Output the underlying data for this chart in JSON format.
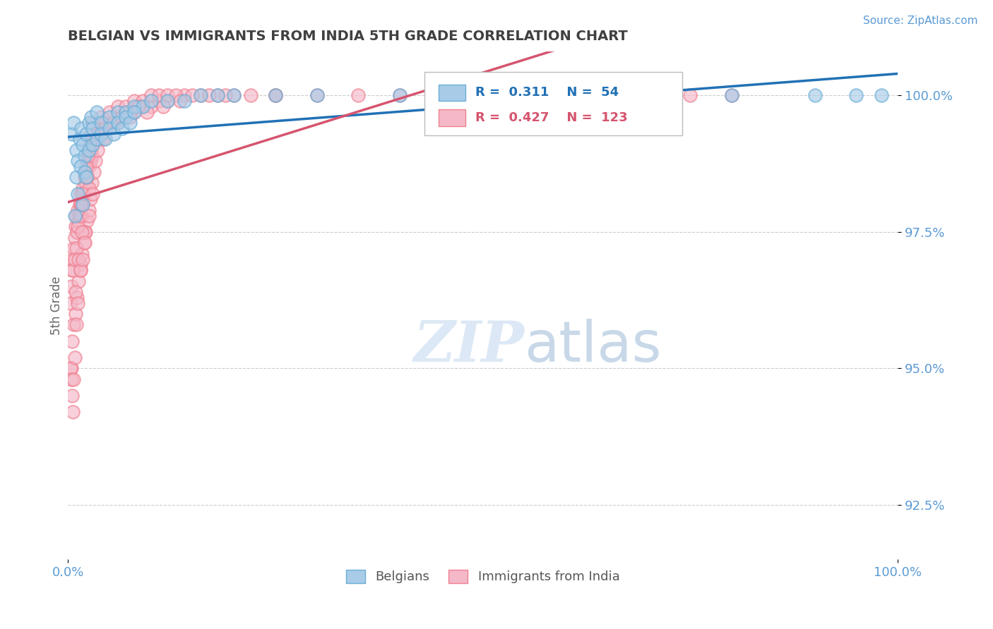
{
  "title": "BELGIAN VS IMMIGRANTS FROM INDIA 5TH GRADE CORRELATION CHART",
  "source_text": "Source: ZipAtlas.com",
  "ylabel": "5th Grade",
  "xmin": 0.0,
  "xmax": 100.0,
  "ymin": 91.5,
  "ymax": 100.8,
  "yticks": [
    92.5,
    95.0,
    97.5,
    100.0
  ],
  "xticks": [
    0.0,
    100.0
  ],
  "belgian_color": "#a8cce8",
  "india_color": "#f4b8c8",
  "belgian_edge_color": "#6aaed6",
  "india_edge_color": "#f08090",
  "belgian_line_color": "#2171b5",
  "india_line_color": "#d6546e",
  "R_belgian": 0.311,
  "N_belgian": 54,
  "R_india": 0.427,
  "N_india": 123,
  "background_color": "#ffffff",
  "grid_color": "#cccccc",
  "tick_color": "#5b9bd5",
  "title_color": "#404040",
  "watermark_color": "#dce8f5",
  "belgian_x": [
    0.5,
    0.7,
    1.0,
    1.2,
    1.4,
    1.6,
    1.8,
    2.0,
    2.2,
    2.5,
    2.8,
    3.0,
    3.5,
    4.0,
    5.0,
    6.0,
    7.0,
    8.0,
    9.0,
    10.0,
    12.0,
    14.0,
    16.0,
    18.0,
    20.0,
    25.0,
    30.0,
    40.0,
    50.0,
    60.0,
    70.0,
    80.0,
    90.0,
    95.0,
    98.0,
    1.0,
    1.5,
    2.0,
    2.5,
    3.0,
    3.5,
    4.0,
    4.5,
    5.0,
    5.5,
    6.0,
    6.5,
    7.0,
    7.5,
    8.0,
    0.8,
    1.2,
    1.8,
    2.2
  ],
  "belgian_y": [
    99.3,
    99.5,
    99.0,
    98.8,
    99.2,
    99.4,
    99.1,
    98.9,
    99.3,
    99.5,
    99.6,
    99.4,
    99.7,
    99.5,
    99.6,
    99.7,
    99.7,
    99.8,
    99.8,
    99.9,
    99.9,
    99.9,
    100.0,
    100.0,
    100.0,
    100.0,
    100.0,
    100.0,
    100.0,
    100.0,
    100.0,
    100.0,
    100.0,
    100.0,
    100.0,
    98.5,
    98.7,
    98.6,
    99.0,
    99.1,
    99.2,
    99.3,
    99.2,
    99.4,
    99.3,
    99.5,
    99.4,
    99.6,
    99.5,
    99.7,
    97.8,
    98.2,
    98.0,
    98.5
  ],
  "india_x": [
    0.3,
    0.4,
    0.5,
    0.6,
    0.7,
    0.8,
    0.9,
    1.0,
    1.1,
    1.2,
    1.3,
    1.4,
    1.5,
    1.6,
    1.7,
    1.8,
    1.9,
    2.0,
    2.1,
    2.2,
    2.3,
    2.4,
    2.5,
    2.6,
    2.7,
    2.8,
    2.9,
    3.0,
    3.2,
    3.5,
    3.8,
    4.0,
    4.5,
    5.0,
    5.5,
    6.0,
    7.0,
    8.0,
    9.0,
    10.0,
    11.0,
    12.0,
    14.0,
    16.0,
    18.0,
    20.0,
    25.0,
    30.0,
    35.0,
    40.0,
    45.0,
    50.0,
    55.0,
    60.0,
    65.0,
    70.0,
    75.0,
    80.0,
    0.5,
    0.7,
    0.9,
    1.1,
    1.3,
    1.5,
    1.7,
    1.9,
    2.1,
    2.3,
    2.5,
    2.7,
    2.9,
    3.1,
    3.3,
    3.6,
    4.2,
    5.5,
    7.5,
    2.5,
    3.5,
    6.0,
    1.0,
    1.5,
    2.0,
    0.6,
    0.8,
    1.2,
    1.4,
    1.6,
    1.8,
    2.2,
    2.4,
    2.6,
    2.8,
    3.0,
    4.0,
    5.0,
    6.0,
    7.0,
    8.0,
    9.0,
    10.0,
    11.0,
    12.0,
    13.0,
    15.0,
    17.0,
    19.0,
    22.0,
    25.0,
    0.4,
    0.9,
    1.3,
    1.7,
    3.5,
    5.5,
    7.5,
    9.5,
    11.5,
    13.5,
    2.3,
    4.5,
    6.5,
    8.5
  ],
  "india_y": [
    96.2,
    96.5,
    96.8,
    97.0,
    97.2,
    97.4,
    97.6,
    97.8,
    97.5,
    97.9,
    97.7,
    98.0,
    98.2,
    98.0,
    97.8,
    98.3,
    98.1,
    98.5,
    98.4,
    98.6,
    98.5,
    98.8,
    98.7,
    98.9,
    98.8,
    99.0,
    98.9,
    99.1,
    99.2,
    99.3,
    99.2,
    99.4,
    99.5,
    99.5,
    99.6,
    99.6,
    99.7,
    99.7,
    99.8,
    99.8,
    99.9,
    99.9,
    100.0,
    100.0,
    100.0,
    100.0,
    100.0,
    100.0,
    100.0,
    100.0,
    100.0,
    100.0,
    100.0,
    100.0,
    100.0,
    100.0,
    100.0,
    100.0,
    95.5,
    95.8,
    96.0,
    96.3,
    96.6,
    96.9,
    97.1,
    97.3,
    97.5,
    97.7,
    97.9,
    98.1,
    98.4,
    98.6,
    98.8,
    99.0,
    99.2,
    99.5,
    99.7,
    98.3,
    99.3,
    99.5,
    97.2,
    96.8,
    97.5,
    96.8,
    97.0,
    97.6,
    97.8,
    98.0,
    98.2,
    98.7,
    98.9,
    99.1,
    99.3,
    99.5,
    99.6,
    99.7,
    99.8,
    99.8,
    99.9,
    99.9,
    100.0,
    100.0,
    100.0,
    100.0,
    100.0,
    100.0,
    100.0,
    100.0,
    100.0,
    95.0,
    96.4,
    97.0,
    97.5,
    99.3,
    99.5,
    99.6,
    99.7,
    99.8,
    99.9,
    98.5,
    99.4,
    99.6,
    99.8
  ],
  "india_low_x": [
    0.3,
    0.4,
    0.5,
    0.6,
    0.7,
    0.8,
    1.0,
    1.2,
    1.5,
    1.8,
    2.0,
    2.5,
    3.0
  ],
  "india_low_y": [
    95.0,
    94.8,
    94.5,
    94.2,
    94.8,
    95.2,
    95.8,
    96.2,
    96.8,
    97.0,
    97.3,
    97.8,
    98.2
  ]
}
